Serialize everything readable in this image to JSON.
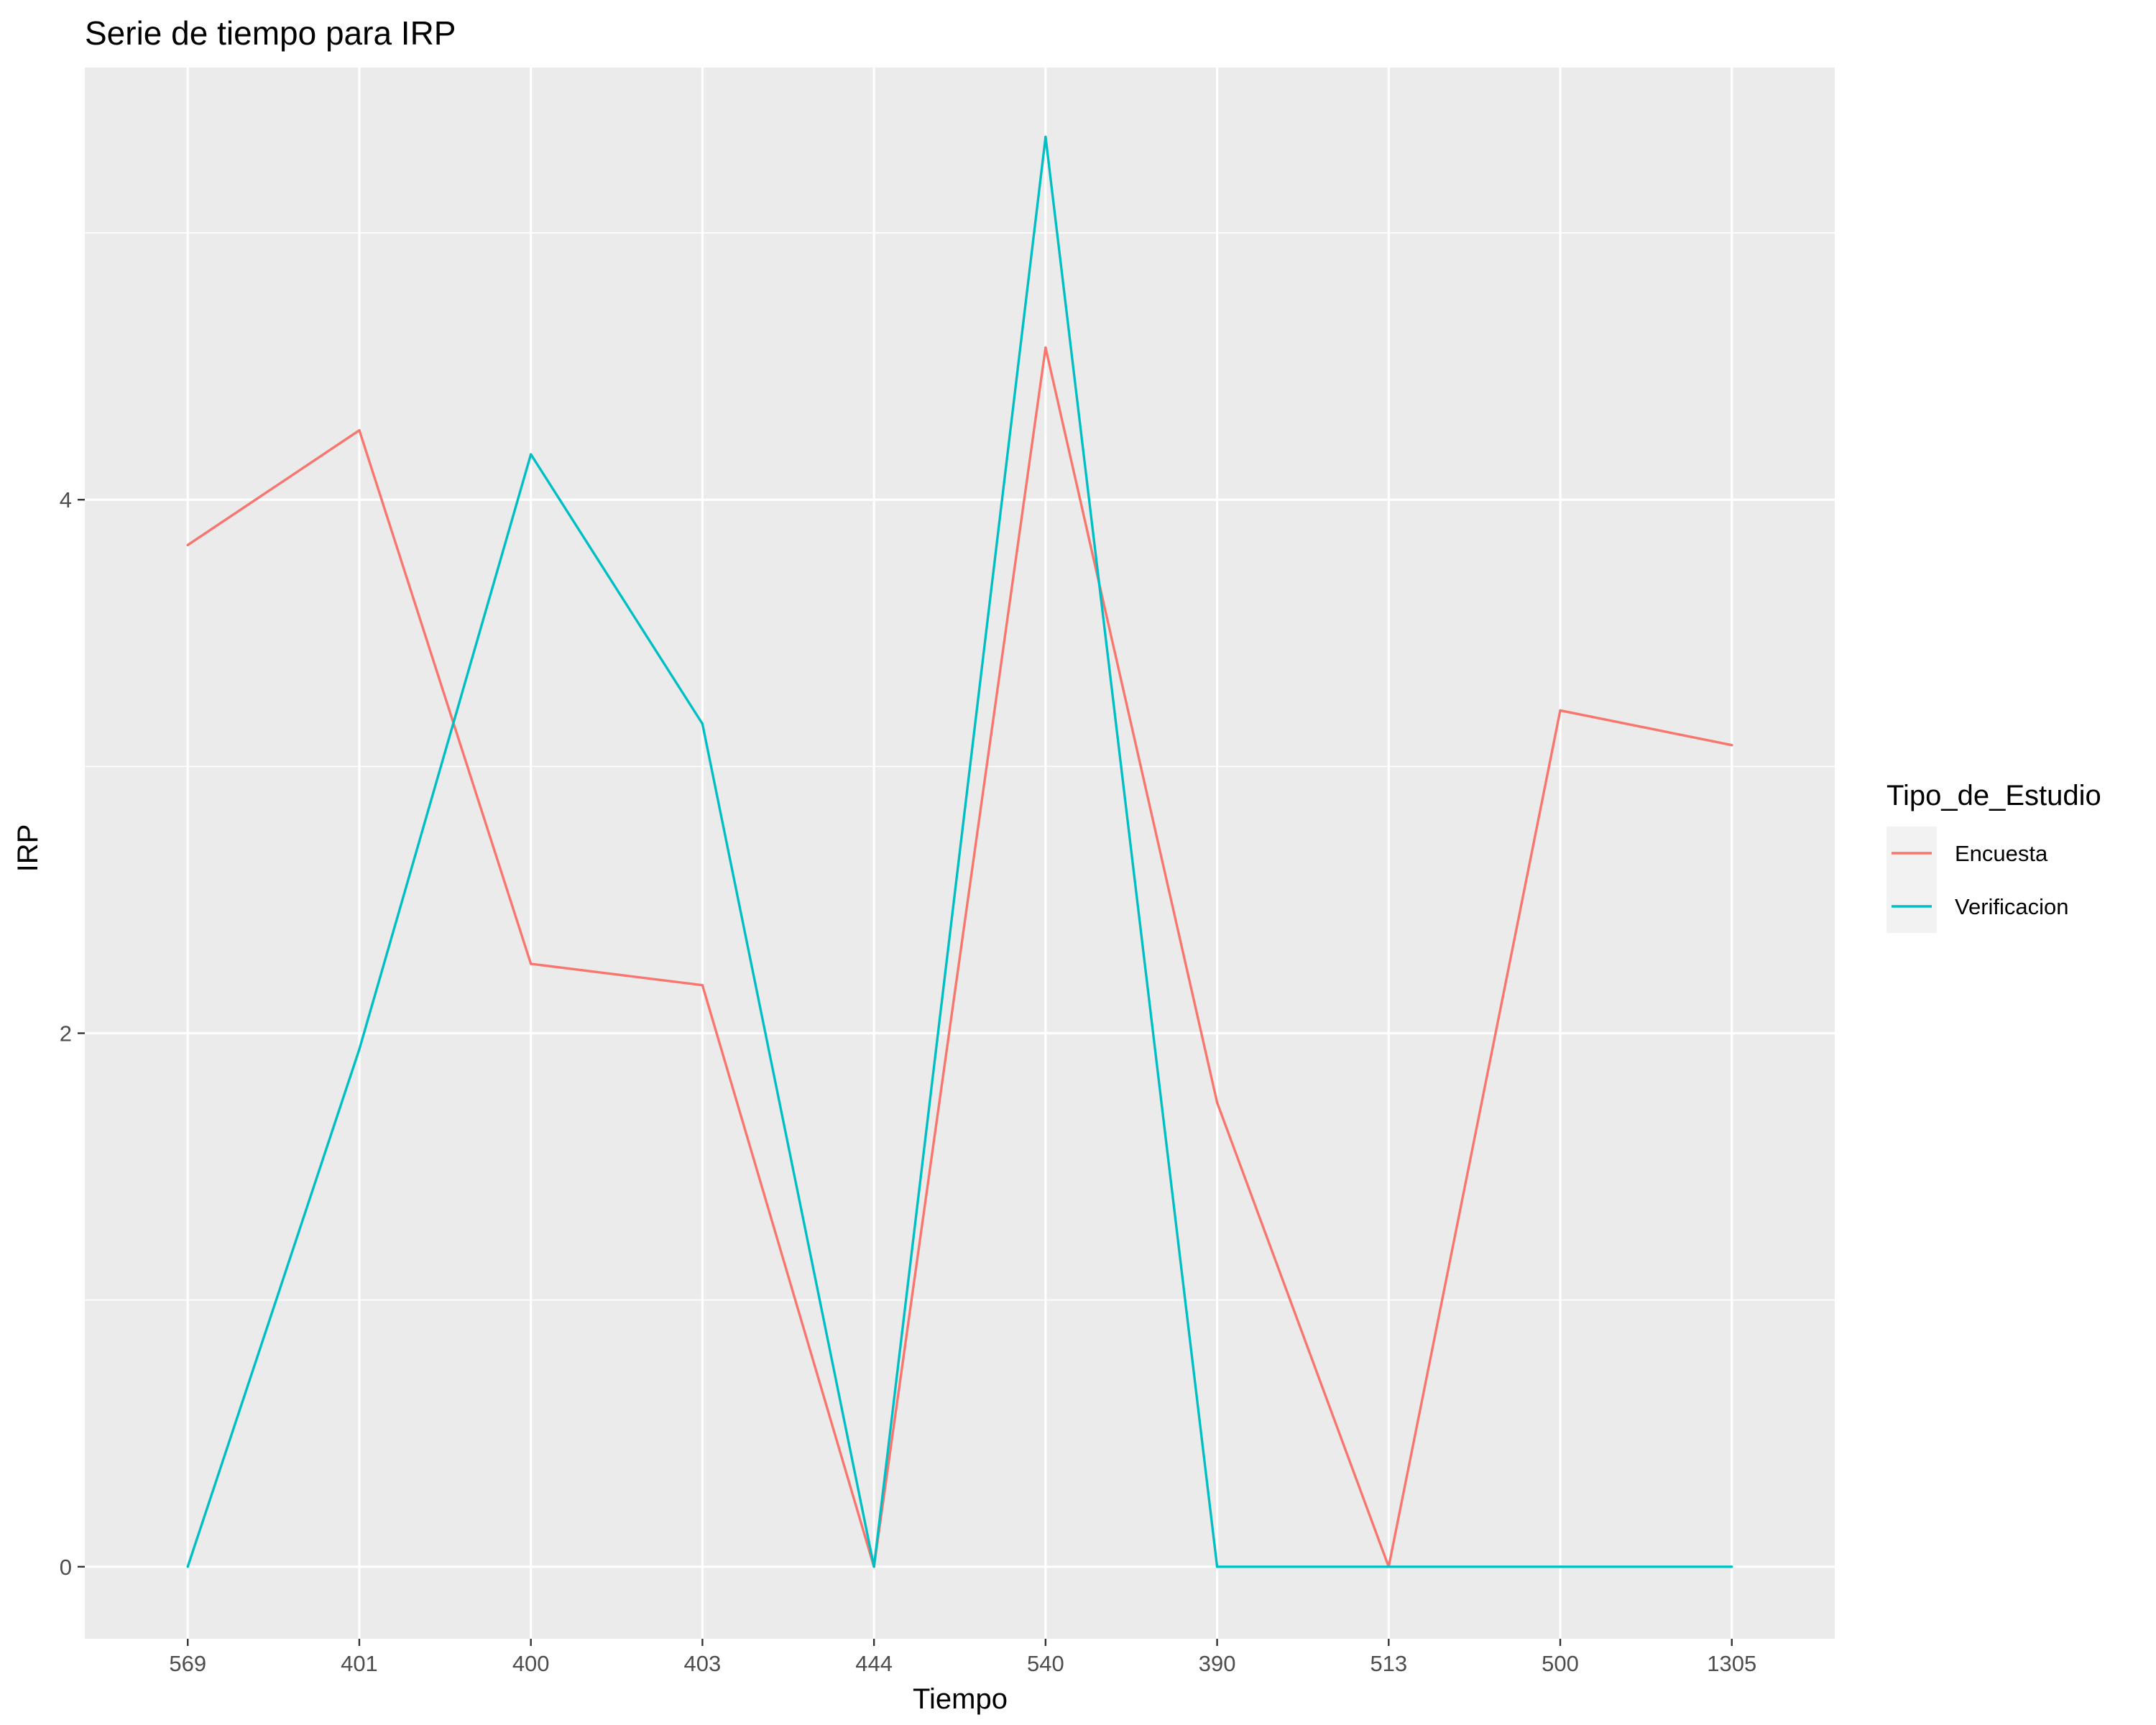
{
  "chart_data": {
    "type": "line",
    "title": "Serie de tiempo para IRP",
    "xlabel": "Tiempo",
    "ylabel": "IRP",
    "categories": [
      "569",
      "401",
      "400",
      "403",
      "444",
      "540",
      "390",
      "513",
      "500",
      "1305"
    ],
    "y_ticks": [
      0,
      2,
      4
    ],
    "ylim": [
      -0.27,
      5.62
    ],
    "grid": true,
    "legend": {
      "title": "Tipo_de_Estudio",
      "placement": "right"
    },
    "series": [
      {
        "name": "Encuesta",
        "color": "#F8766D",
        "values": [
          3.83,
          4.26,
          2.26,
          2.18,
          0.0,
          4.57,
          1.74,
          0.0,
          3.21,
          3.08
        ]
      },
      {
        "name": "Verificacion",
        "color": "#00BFC4",
        "values": [
          0.0,
          1.94,
          4.17,
          3.16,
          0.0,
          5.36,
          0.0,
          0.0,
          0.0,
          0.0
        ]
      }
    ]
  }
}
